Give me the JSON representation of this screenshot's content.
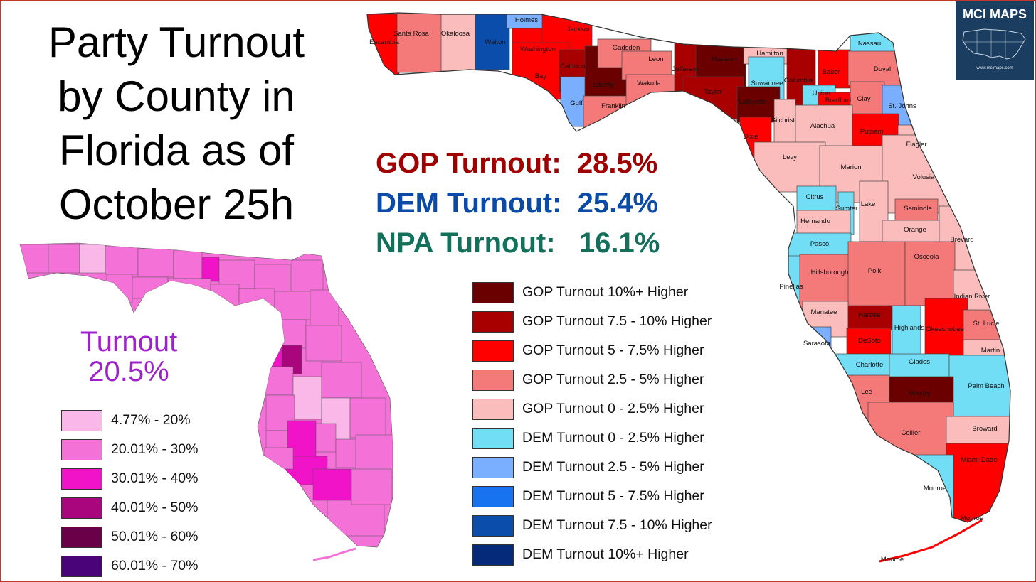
{
  "title_lines": [
    "Party Turnout",
    "by County in",
    "Florida as of",
    "October 25h"
  ],
  "stats": [
    {
      "label": "GOP Turnout:",
      "value": "28.5%",
      "color": "#a00000"
    },
    {
      "label": "DEM Turnout:",
      "value": "25.4%",
      "color": "#0b4aa6"
    },
    {
      "label": "NPA Turnout:",
      "value": "16.1%",
      "color": "#13705a"
    }
  ],
  "overall_turnout": {
    "label": "Turnout",
    "value": "20.5%"
  },
  "brand": {
    "name": "MCI MAPS",
    "url": "www.mcimaps.com"
  },
  "turnout_legend": [
    {
      "label": "4.77% - 20%",
      "color": "#f9b8e8"
    },
    {
      "label": "20.01% - 30%",
      "color": "#f472d8"
    },
    {
      "label": "30.01% - 40%",
      "color": "#f013c8"
    },
    {
      "label": "40.01% - 50%",
      "color": "#a9067e"
    },
    {
      "label": "50.01% - 60%",
      "color": "#6a0048"
    },
    {
      "label": "60.01% - 70%",
      "color": "#4a0479"
    }
  ],
  "party_legend": [
    {
      "label": "GOP Turnout 10%+ Higher",
      "color": "#6b0000"
    },
    {
      "label": "GOP Turnout 7.5 - 10% Higher",
      "color": "#a80000"
    },
    {
      "label": "GOP Turnout 5 - 7.5% Higher",
      "color": "#ff0000"
    },
    {
      "label": "GOP Turnout 2.5 - 5% Higher",
      "color": "#f47a7a"
    },
    {
      "label": "GOP Turnout 0 - 2.5% Higher",
      "color": "#fbbcbc"
    },
    {
      "label": "DEM Turnout 0 - 2.5% Higher",
      "color": "#72def5"
    },
    {
      "label": "DEM Turnout 2.5 - 5% Higher",
      "color": "#7aafff"
    },
    {
      "label": "DEM Turnout 5 - 7.5% Higher",
      "color": "#1773f0"
    },
    {
      "label": "DEM Turnout 7.5 - 10% Higher",
      "color": "#0a4dab"
    },
    {
      "label": "DEM Turnout 10%+ Higher",
      "color": "#062a7a"
    }
  ],
  "counties": [
    {
      "name": "Escambia",
      "category": 2
    },
    {
      "name": "Santa Rosa",
      "category": 3
    },
    {
      "name": "Okaloosa",
      "category": 4
    },
    {
      "name": "Walton",
      "category": 8
    },
    {
      "name": "Holmes",
      "category": 6
    },
    {
      "name": "Washington",
      "category": 2
    },
    {
      "name": "Jackson",
      "category": 2
    },
    {
      "name": "Bay",
      "category": 2
    },
    {
      "name": "Calhoun",
      "category": 1
    },
    {
      "name": "Liberty",
      "category": 0
    },
    {
      "name": "Gadsden",
      "category": 3
    },
    {
      "name": "Gulf",
      "category": 6
    },
    {
      "name": "Franklin",
      "category": 3
    },
    {
      "name": "Leon",
      "category": 3
    },
    {
      "name": "Wakulla",
      "category": 3
    },
    {
      "name": "Jefferson",
      "category": 1
    },
    {
      "name": "Madison",
      "category": 0
    },
    {
      "name": "Taylor",
      "category": 1
    },
    {
      "name": "Hamilton",
      "category": 4
    },
    {
      "name": "Suwannee",
      "category": 5
    },
    {
      "name": "Lafayette",
      "category": 0
    },
    {
      "name": "Columbia",
      "category": 1
    },
    {
      "name": "Dixie",
      "category": 2
    },
    {
      "name": "Gilchrist",
      "category": 4
    },
    {
      "name": "Baker",
      "category": 2
    },
    {
      "name": "Union",
      "category": 5
    },
    {
      "name": "Bradford",
      "category": 2
    },
    {
      "name": "Nassau",
      "category": 5
    },
    {
      "name": "Duval",
      "category": 3
    },
    {
      "name": "Clay",
      "category": 3
    },
    {
      "name": "St. Johns",
      "category": 6
    },
    {
      "name": "Putnam",
      "category": 2
    },
    {
      "name": "Alachua",
      "category": 4
    },
    {
      "name": "Flagler",
      "category": 4
    },
    {
      "name": "Levy",
      "category": 4
    },
    {
      "name": "Marion",
      "category": 4
    },
    {
      "name": "Volusia",
      "category": 4
    },
    {
      "name": "Citrus",
      "category": 5
    },
    {
      "name": "Sumter",
      "category": 5
    },
    {
      "name": "Lake",
      "category": 4
    },
    {
      "name": "Seminole",
      "category": 3
    },
    {
      "name": "Hernando",
      "category": 4
    },
    {
      "name": "Orange",
      "category": 4
    },
    {
      "name": "Brevard",
      "category": 4
    },
    {
      "name": "Pasco",
      "category": 5
    },
    {
      "name": "Pinellas",
      "category": 5
    },
    {
      "name": "Hillsborough",
      "category": 3
    },
    {
      "name": "Polk",
      "category": 3
    },
    {
      "name": "Osceola",
      "category": 3
    },
    {
      "name": "Indian River",
      "category": 4
    },
    {
      "name": "Manatee",
      "category": 4
    },
    {
      "name": "Hardee",
      "category": 1
    },
    {
      "name": "Highlands",
      "category": 5
    },
    {
      "name": "Okeechobee",
      "category": 2
    },
    {
      "name": "St. Lucie",
      "category": 3
    },
    {
      "name": "Sarasota",
      "category": 6
    },
    {
      "name": "DeSoto",
      "category": 2
    },
    {
      "name": "Martin",
      "category": 4
    },
    {
      "name": "Charlotte",
      "category": 5
    },
    {
      "name": "Glades",
      "category": 5
    },
    {
      "name": "Palm Beach",
      "category": 5
    },
    {
      "name": "Lee",
      "category": 3
    },
    {
      "name": "Hendry",
      "category": 0
    },
    {
      "name": "Collier",
      "category": 3
    },
    {
      "name": "Broward",
      "category": 4
    },
    {
      "name": "Miami-Dade",
      "category": 2
    },
    {
      "name": "Monroe",
      "category": 5
    },
    {
      "name": "Monroe",
      "category": 5
    },
    {
      "name": "Monroe",
      "category": 5
    }
  ]
}
